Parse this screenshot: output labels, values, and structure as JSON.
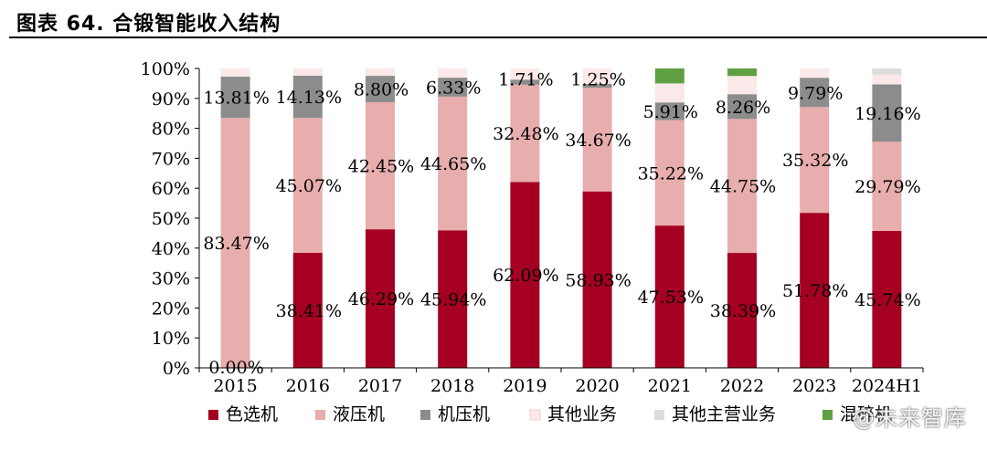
{
  "figure": {
    "title": "图表 64. 合锻智能收入结构"
  },
  "watermark": "@未来智库",
  "chart_data": {
    "type": "bar",
    "stacked": true,
    "categories": [
      "2015",
      "2016",
      "2017",
      "2018",
      "2019",
      "2020",
      "2021",
      "2022",
      "2023",
      "2024H1"
    ],
    "ylim": [
      0,
      100
    ],
    "yticks": [
      "0%",
      "10%",
      "20%",
      "30%",
      "40%",
      "50%",
      "60%",
      "70%",
      "80%",
      "90%",
      "100%"
    ],
    "legend_position": "bottom",
    "series": [
      {
        "name": "色选机",
        "color": "#a50021",
        "values": [
          0.0,
          38.41,
          46.29,
          45.94,
          62.09,
          58.93,
          47.53,
          38.39,
          51.78,
          45.74
        ],
        "labels": [
          "0.00%",
          "38.41%",
          "46.29%",
          "45.94%",
          "62.09%",
          "58.93%",
          "47.53%",
          "38.39%",
          "51.78%",
          "45.74%"
        ]
      },
      {
        "name": "液压机",
        "color": "#e8adad",
        "values": [
          83.47,
          45.07,
          42.45,
          44.65,
          32.48,
          34.67,
          35.22,
          44.75,
          35.32,
          29.79
        ],
        "labels": [
          "83.47%",
          "45.07%",
          "42.45%",
          "44.65%",
          "32.48%",
          "34.67%",
          "35.22%",
          "44.75%",
          "35.32%",
          "29.79%"
        ]
      },
      {
        "name": "机压机",
        "color": "#8c8c8c",
        "values": [
          13.81,
          14.13,
          8.8,
          6.33,
          1.71,
          1.25,
          5.91,
          8.26,
          9.79,
          19.16
        ],
        "labels": [
          "13.81%",
          "14.13%",
          "8.80%",
          "6.33%",
          "1.71%",
          "1.25%",
          "5.91%",
          "8.26%",
          "9.79%",
          "19.16%"
        ]
      },
      {
        "name": "其他业务",
        "color": "#fbe8e8",
        "values": [
          2.72,
          2.39,
          2.46,
          3.08,
          3.72,
          5.15,
          6.34,
          6.1,
          3.11,
          3.31
        ]
      },
      {
        "name": "其他主营业务",
        "color": "#dcdcdc",
        "values": [
          0,
          0,
          0,
          0,
          0,
          0,
          0,
          0,
          0,
          2.0
        ]
      },
      {
        "name": "混碎机",
        "color": "#5fa043",
        "values": [
          0,
          0,
          0,
          0,
          0,
          0,
          5.0,
          2.5,
          0,
          0
        ]
      }
    ]
  }
}
